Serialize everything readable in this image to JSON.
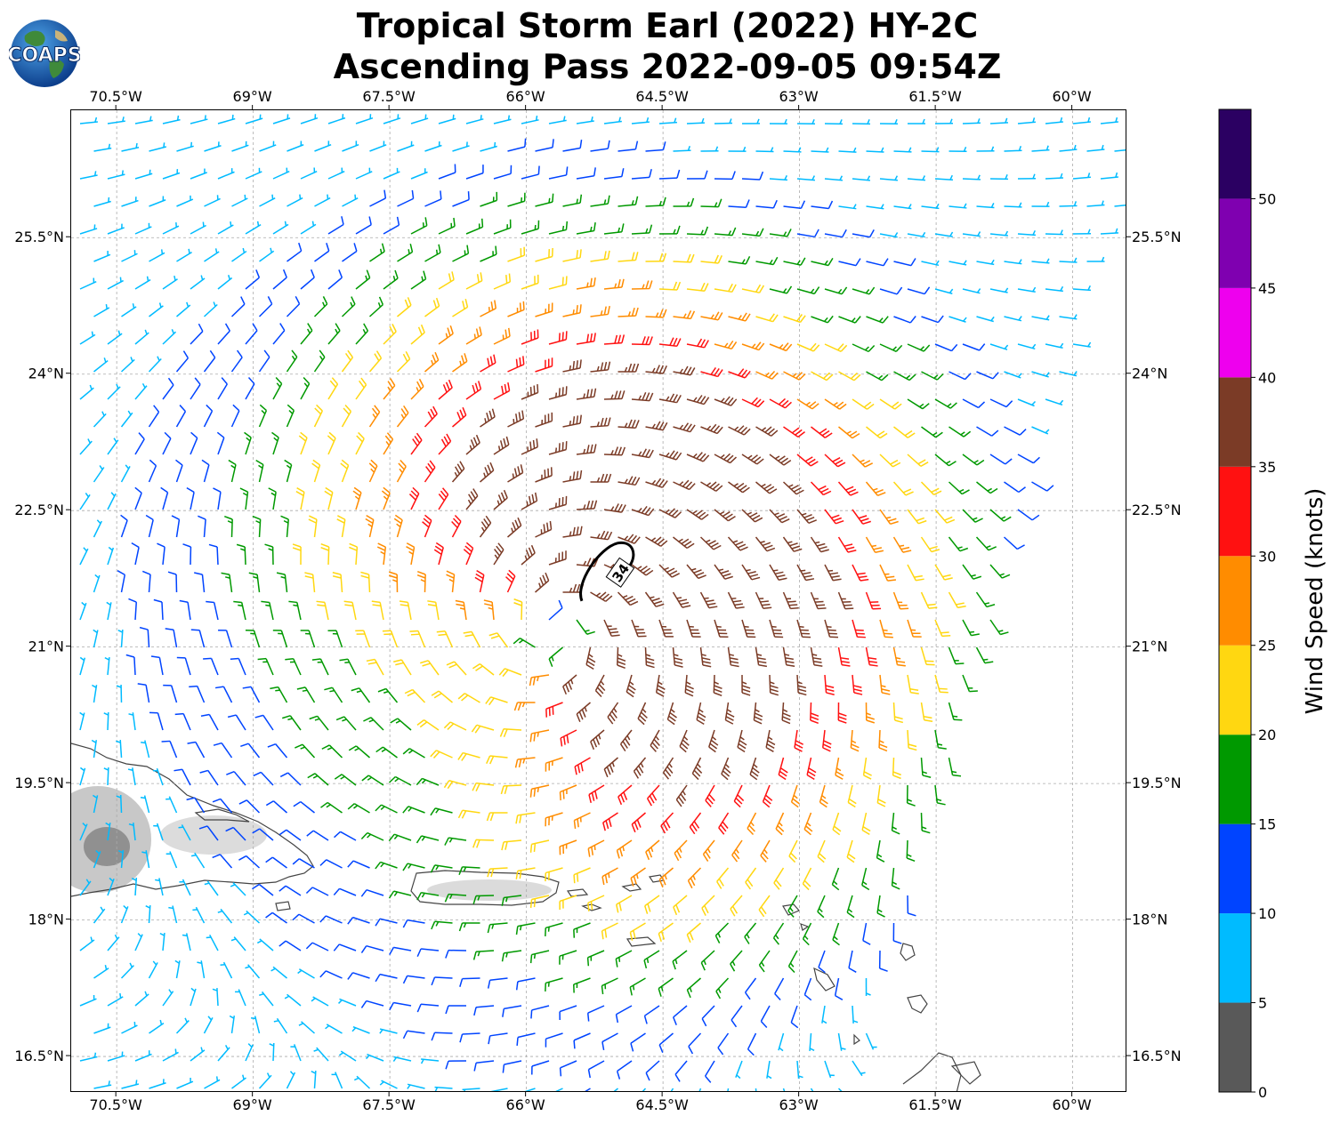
{
  "title": {
    "line1": "Tropical Storm Earl (2022) HY-2C",
    "line2": "Ascending Pass 2022-09-05 09:54Z"
  },
  "logo": {
    "text": "COAPS",
    "icon": "globe-logo-icon"
  },
  "map": {
    "lon_labels": [
      "70.5°W",
      "69°W",
      "67.5°W",
      "66°W",
      "64.5°W",
      "63°W",
      "61.5°W",
      "60°W"
    ],
    "lon_values": [
      -70.5,
      -69,
      -67.5,
      -66,
      -64.5,
      -63,
      -61.5,
      -60
    ],
    "lat_labels": [
      "25.5°N",
      "24°N",
      "22.5°N",
      "21°N",
      "19.5°N",
      "18°N",
      "16.5°N"
    ],
    "lat_values": [
      25.5,
      24,
      22.5,
      21,
      19.5,
      18,
      16.5
    ],
    "extent": {
      "lon": [
        -71.0,
        -59.4
      ],
      "lat": [
        16.1,
        26.9
      ]
    },
    "grid": true,
    "storm_center": {
      "lon": -65.7,
      "lat": 21.2
    },
    "contour_label": "34",
    "contour_center": {
      "lon": -65.0,
      "lat": 21.8
    },
    "land_color": "#ffffff",
    "coast_color": "#444444",
    "terrain_color": "#9a9a9a"
  },
  "colorbar": {
    "label": "Wind Speed (knots)",
    "ticks": [
      "0",
      "5",
      "10",
      "15",
      "20",
      "25",
      "30",
      "35",
      "40",
      "45",
      "50"
    ],
    "bins": [
      {
        "from": 0,
        "to": 5,
        "color": "#595959"
      },
      {
        "from": 5,
        "to": 10,
        "color": "#00bbff"
      },
      {
        "from": 10,
        "to": 15,
        "color": "#0044ff"
      },
      {
        "from": 15,
        "to": 20,
        "color": "#009900"
      },
      {
        "from": 20,
        "to": 25,
        "color": "#ffd711"
      },
      {
        "from": 25,
        "to": 30,
        "color": "#ff8c00"
      },
      {
        "from": 30,
        "to": 35,
        "color": "#ff1111"
      },
      {
        "from": 35,
        "to": 40,
        "color": "#7b3b26"
      },
      {
        "from": 40,
        "to": 45,
        "color": "#ee00ee"
      },
      {
        "from": 45,
        "to": 50,
        "color": "#7f00b0"
      },
      {
        "from": 50,
        "to": 55,
        "color": "#2b0062"
      }
    ]
  }
}
